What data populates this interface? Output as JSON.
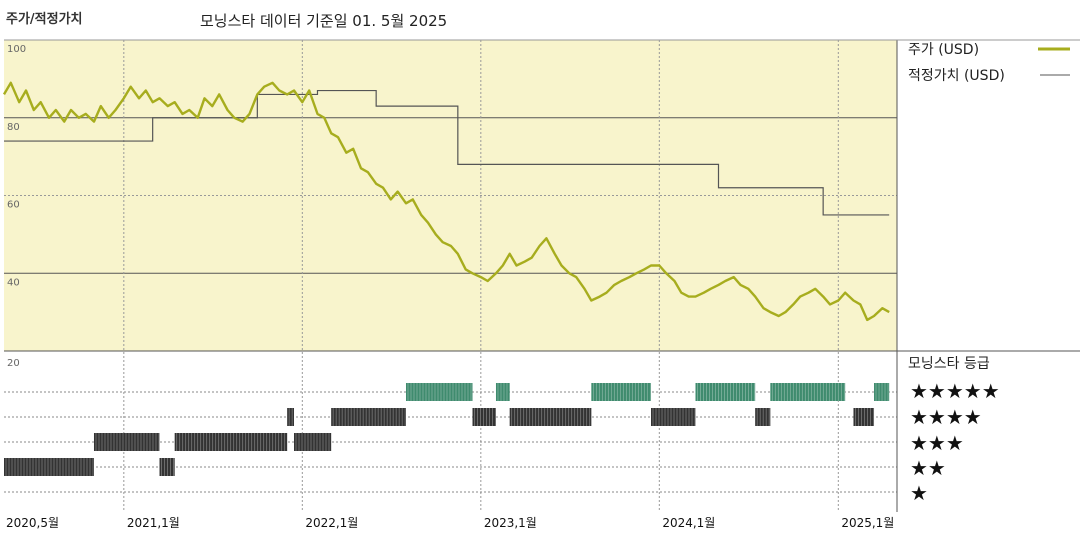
{
  "header": {
    "left_label": "주가/적정가치",
    "title": "모닝스타 데이터 기준일 01. 5월 2025"
  },
  "chart_data": {
    "type": "line",
    "price_axis": {
      "ylim": [
        20,
        100
      ],
      "ticks": [
        20,
        40,
        60,
        80,
        100
      ]
    },
    "x_range": [
      "2020-05-01",
      "2025-05-01"
    ],
    "x_ticks": [
      {
        "date": "2020-05-01",
        "label": "2020,5월"
      },
      {
        "date": "2021-01-01",
        "label": "2021,1월"
      },
      {
        "date": "2022-01-01",
        "label": "2022,1월"
      },
      {
        "date": "2023-01-01",
        "label": "2023,1월"
      },
      {
        "date": "2024-01-01",
        "label": "2024,1월"
      },
      {
        "date": "2025-01-01",
        "label": "2025,1월"
      }
    ],
    "series": [
      {
        "name": "주가 (USD)",
        "color": "#a7ad1e",
        "points": [
          [
            "2020-05-01",
            86
          ],
          [
            "2020-05-15",
            89
          ],
          [
            "2020-06-01",
            84
          ],
          [
            "2020-06-15",
            87
          ],
          [
            "2020-07-01",
            82
          ],
          [
            "2020-07-15",
            84
          ],
          [
            "2020-08-01",
            80
          ],
          [
            "2020-08-15",
            82
          ],
          [
            "2020-09-01",
            79
          ],
          [
            "2020-09-15",
            82
          ],
          [
            "2020-10-01",
            80
          ],
          [
            "2020-10-15",
            81
          ],
          [
            "2020-11-01",
            79
          ],
          [
            "2020-11-15",
            83
          ],
          [
            "2020-12-01",
            80
          ],
          [
            "2020-12-15",
            82
          ],
          [
            "2021-01-01",
            85
          ],
          [
            "2021-01-15",
            88
          ],
          [
            "2021-02-01",
            85
          ],
          [
            "2021-02-15",
            87
          ],
          [
            "2021-03-01",
            84
          ],
          [
            "2021-03-15",
            85
          ],
          [
            "2021-04-01",
            83
          ],
          [
            "2021-04-15",
            84
          ],
          [
            "2021-05-01",
            81
          ],
          [
            "2021-05-15",
            82
          ],
          [
            "2021-06-01",
            80
          ],
          [
            "2021-06-15",
            85
          ],
          [
            "2021-07-01",
            83
          ],
          [
            "2021-07-15",
            86
          ],
          [
            "2021-08-01",
            82
          ],
          [
            "2021-08-15",
            80
          ],
          [
            "2021-09-01",
            79
          ],
          [
            "2021-09-15",
            81
          ],
          [
            "2021-10-01",
            86
          ],
          [
            "2021-10-15",
            88
          ],
          [
            "2021-11-01",
            89
          ],
          [
            "2021-11-15",
            87
          ],
          [
            "2021-12-01",
            86
          ],
          [
            "2021-12-15",
            87
          ],
          [
            "2022-01-01",
            84
          ],
          [
            "2022-01-15",
            87
          ],
          [
            "2022-02-01",
            81
          ],
          [
            "2022-02-15",
            80
          ],
          [
            "2022-03-01",
            76
          ],
          [
            "2022-03-15",
            75
          ],
          [
            "2022-04-01",
            71
          ],
          [
            "2022-04-15",
            72
          ],
          [
            "2022-05-01",
            67
          ],
          [
            "2022-05-15",
            66
          ],
          [
            "2022-06-01",
            63
          ],
          [
            "2022-06-15",
            62
          ],
          [
            "2022-07-01",
            59
          ],
          [
            "2022-07-15",
            61
          ],
          [
            "2022-08-01",
            58
          ],
          [
            "2022-08-15",
            59
          ],
          [
            "2022-09-01",
            55
          ],
          [
            "2022-09-15",
            53
          ],
          [
            "2022-10-01",
            50
          ],
          [
            "2022-10-15",
            48
          ],
          [
            "2022-11-01",
            47
          ],
          [
            "2022-11-15",
            45
          ],
          [
            "2022-12-01",
            41
          ],
          [
            "2022-12-15",
            40
          ],
          [
            "2023-01-01",
            39
          ],
          [
            "2023-01-15",
            38
          ],
          [
            "2023-02-01",
            40
          ],
          [
            "2023-02-15",
            42
          ],
          [
            "2023-03-01",
            45
          ],
          [
            "2023-03-15",
            42
          ],
          [
            "2023-04-01",
            43
          ],
          [
            "2023-04-15",
            44
          ],
          [
            "2023-05-01",
            47
          ],
          [
            "2023-05-15",
            49
          ],
          [
            "2023-06-01",
            45
          ],
          [
            "2023-06-15",
            42
          ],
          [
            "2023-07-01",
            40
          ],
          [
            "2023-07-15",
            39
          ],
          [
            "2023-08-01",
            36
          ],
          [
            "2023-08-15",
            33
          ],
          [
            "2023-09-01",
            34
          ],
          [
            "2023-09-15",
            35
          ],
          [
            "2023-10-01",
            37
          ],
          [
            "2023-10-15",
            38
          ],
          [
            "2023-11-01",
            39
          ],
          [
            "2023-11-15",
            40
          ],
          [
            "2023-12-01",
            41
          ],
          [
            "2023-12-15",
            42
          ],
          [
            "2024-01-01",
            42
          ],
          [
            "2024-01-15",
            40
          ],
          [
            "2024-02-01",
            38
          ],
          [
            "2024-02-15",
            35
          ],
          [
            "2024-03-01",
            34
          ],
          [
            "2024-03-15",
            34
          ],
          [
            "2024-04-01",
            35
          ],
          [
            "2024-04-15",
            36
          ],
          [
            "2024-05-01",
            37
          ],
          [
            "2024-05-15",
            38
          ],
          [
            "2024-06-01",
            39
          ],
          [
            "2024-06-15",
            37
          ],
          [
            "2024-07-01",
            36
          ],
          [
            "2024-07-15",
            34
          ],
          [
            "2024-08-01",
            31
          ],
          [
            "2024-08-15",
            30
          ],
          [
            "2024-09-01",
            29
          ],
          [
            "2024-09-15",
            30
          ],
          [
            "2024-10-01",
            32
          ],
          [
            "2024-10-15",
            34
          ],
          [
            "2024-11-01",
            35
          ],
          [
            "2024-11-15",
            36
          ],
          [
            "2024-12-01",
            34
          ],
          [
            "2024-12-15",
            32
          ],
          [
            "2025-01-01",
            33
          ],
          [
            "2025-01-15",
            35
          ],
          [
            "2025-02-01",
            33
          ],
          [
            "2025-02-15",
            32
          ],
          [
            "2025-03-01",
            28
          ],
          [
            "2025-03-15",
            29
          ],
          [
            "2025-04-01",
            31
          ],
          [
            "2025-04-15",
            30
          ]
        ]
      },
      {
        "name": "적정가치 (USD)",
        "color": "#555555",
        "step_points": [
          [
            "2020-05-01",
            74
          ],
          [
            "2021-03-01",
            80
          ],
          [
            "2021-10-01",
            86
          ],
          [
            "2022-02-01",
            87
          ],
          [
            "2022-06-01",
            83
          ],
          [
            "2022-11-15",
            68
          ],
          [
            "2024-05-01",
            62
          ],
          [
            "2024-12-01",
            55
          ],
          [
            "2025-04-15",
            55
          ]
        ]
      }
    ],
    "rating": {
      "title": "모닝스타 등급",
      "levels": [
        "★★★★★",
        "★★★★",
        "★★★",
        "★★",
        "★"
      ],
      "colors": {
        "5": "#3f8b6e",
        "4": "#333333",
        "3": "#333333",
        "2": "#333333",
        "1": "#333333"
      },
      "periods": [
        {
          "stars": 2,
          "start": "2020-05-01",
          "end": "2020-11-01"
        },
        {
          "stars": 3,
          "start": "2020-11-01",
          "end": "2021-03-15"
        },
        {
          "stars": 2,
          "start": "2021-03-15",
          "end": "2021-04-15"
        },
        {
          "stars": 3,
          "start": "2021-04-15",
          "end": "2021-12-01"
        },
        {
          "stars": 4,
          "start": "2021-12-01",
          "end": "2021-12-15"
        },
        {
          "stars": 3,
          "start": "2021-12-15",
          "end": "2022-03-01"
        },
        {
          "stars": 4,
          "start": "2022-03-01",
          "end": "2022-08-01"
        },
        {
          "stars": 5,
          "start": "2022-08-01",
          "end": "2022-12-15"
        },
        {
          "stars": 4,
          "start": "2022-12-15",
          "end": "2023-02-01"
        },
        {
          "stars": 5,
          "start": "2023-02-01",
          "end": "2023-03-01"
        },
        {
          "stars": 4,
          "start": "2023-03-01",
          "end": "2023-08-15"
        },
        {
          "stars": 5,
          "start": "2023-08-15",
          "end": "2023-12-15"
        },
        {
          "stars": 4,
          "start": "2023-12-15",
          "end": "2024-03-15"
        },
        {
          "stars": 5,
          "start": "2024-03-15",
          "end": "2024-07-15"
        },
        {
          "stars": 4,
          "start": "2024-07-15",
          "end": "2024-08-15"
        },
        {
          "stars": 5,
          "start": "2024-08-15",
          "end": "2025-01-15"
        },
        {
          "stars": 4,
          "start": "2025-02-01",
          "end": "2025-03-15"
        },
        {
          "stars": 5,
          "start": "2025-03-15",
          "end": "2025-04-15"
        }
      ]
    }
  }
}
